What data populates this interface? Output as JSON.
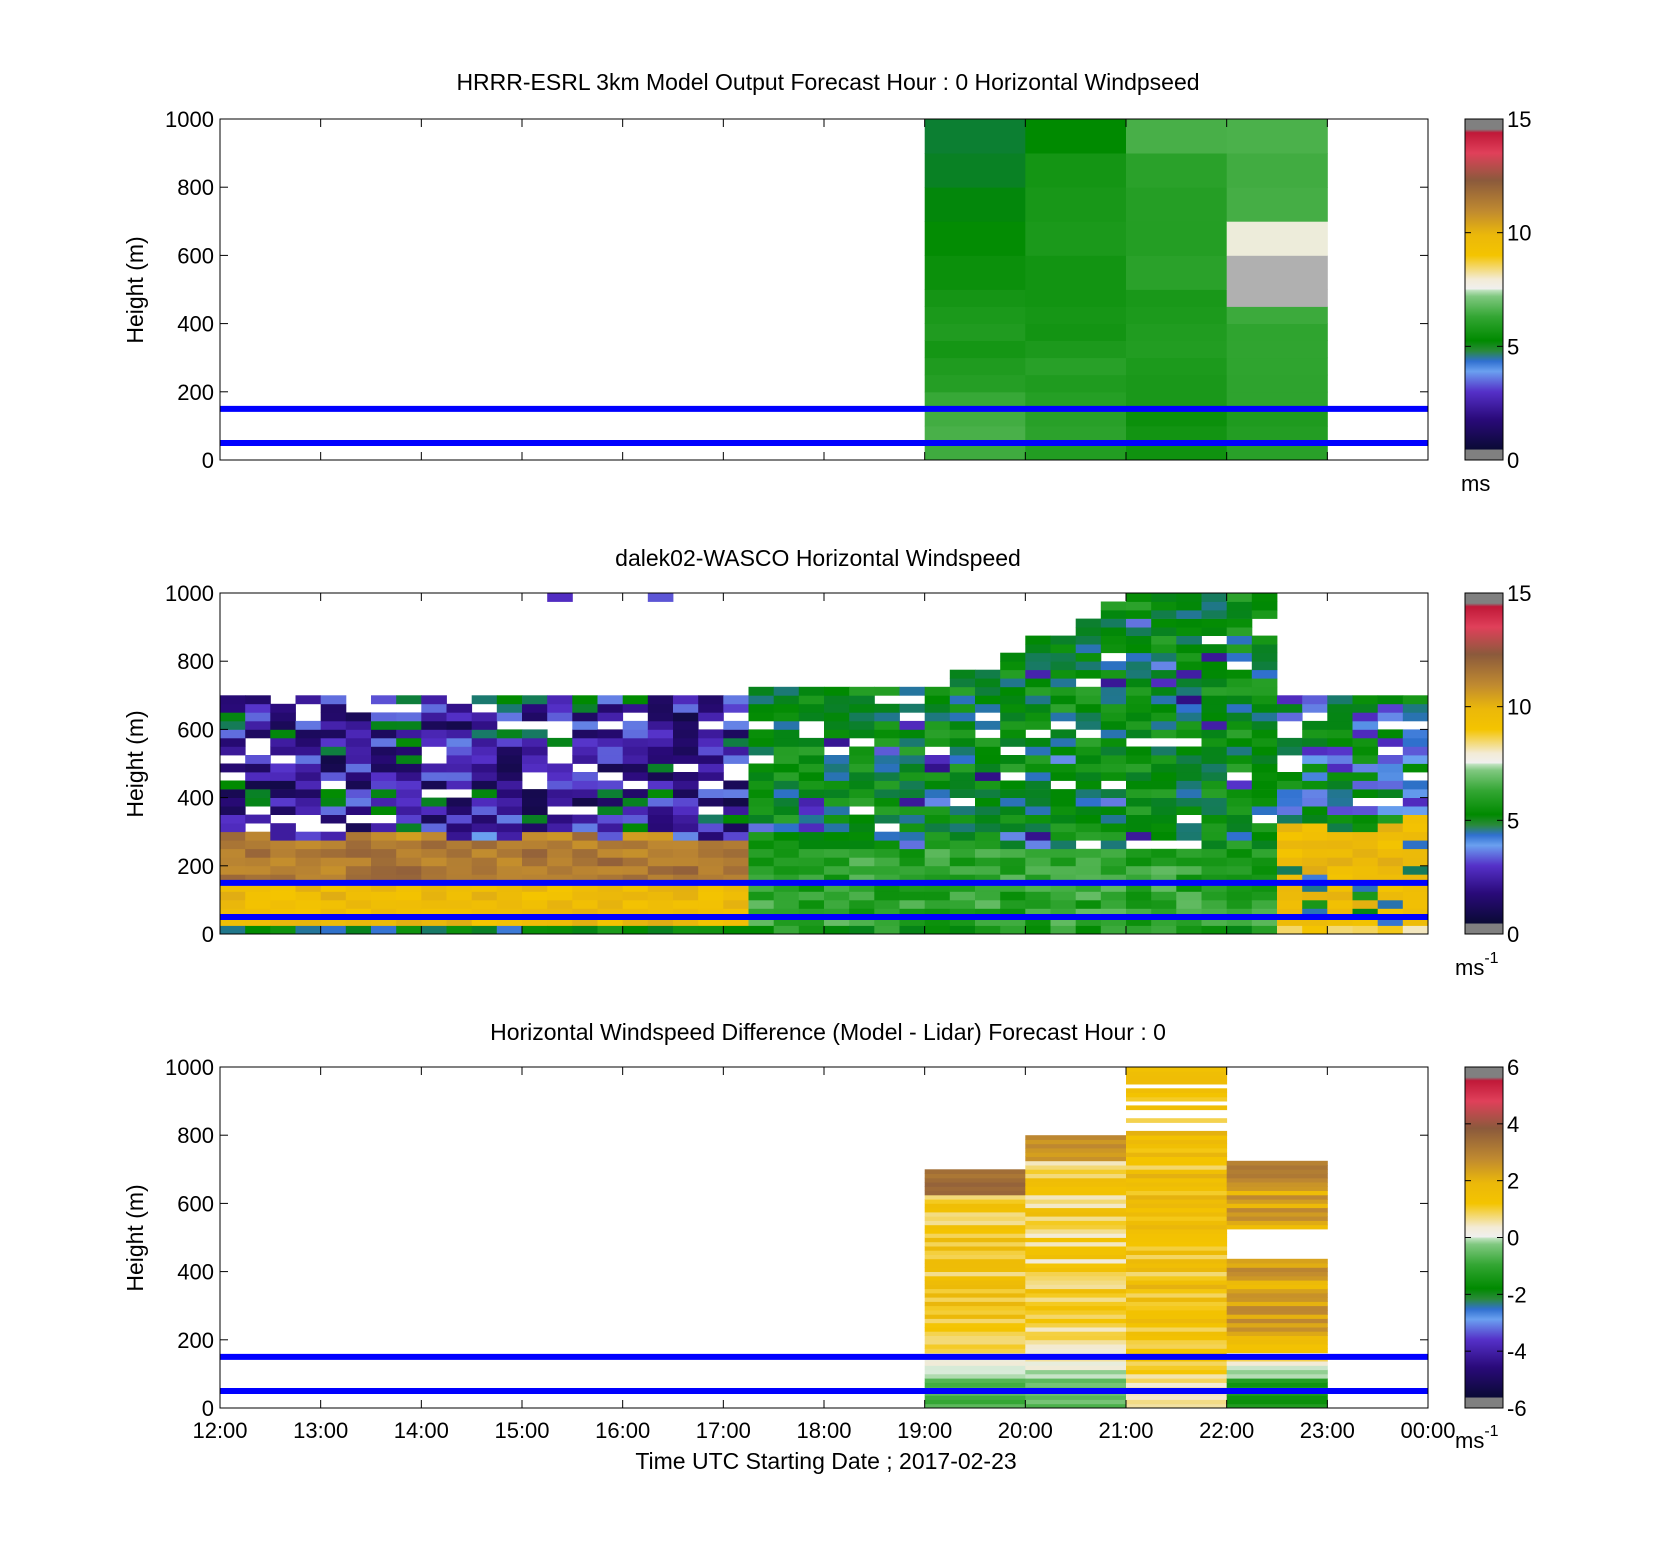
{
  "chart_data": [
    {
      "type": "heatmap",
      "title": "HRRR-ESRL 3km Model Output   Forecast Hour : 0 Horizontal Windpseed",
      "ylabel": "Height (m)",
      "ylim": [
        0,
        1000
      ],
      "yticks": [
        "0",
        "200",
        "400",
        "600",
        "800",
        "1000"
      ],
      "xlim": [
        12,
        24
      ],
      "xtick_labels_shown": false,
      "colorbar": {
        "min": 0,
        "max": 15,
        "ticks": [
          "0",
          "5",
          "10",
          "15"
        ],
        "unit": "ms",
        "unit_sup": ""
      },
      "reference_lines_m": [
        50,
        150
      ],
      "reference_line_color": "#0000ff",
      "columns": [
        {
          "start_hour": 19,
          "end_hour": 20,
          "base_speed": 6.6,
          "top_speed": 4.6
        },
        {
          "start_hour": 20,
          "end_hour": 21,
          "base_speed": 6.1,
          "top_speed": 5.5
        },
        {
          "start_hour": 21,
          "end_hour": 22,
          "base_speed": 5.6,
          "top_speed": 6.4
        },
        {
          "start_hour": 22,
          "end_hour": 23,
          "base_speed": 6.0,
          "top_speed": 6.5,
          "missing_band_m": [
            450,
            600
          ],
          "high_band_m": [
            600,
            700
          ],
          "high_band_speed": 7.8
        }
      ]
    },
    {
      "type": "heatmap",
      "title": "dalek02-WASCO  Horizontal Windspeed",
      "ylabel": "Height (m)",
      "ylim": [
        0,
        1000
      ],
      "yticks": [
        "0",
        "200",
        "400",
        "600",
        "800",
        "1000"
      ],
      "xlim": [
        12,
        24
      ],
      "xtick_labels_shown": false,
      "colorbar": {
        "min": 0,
        "max": 15,
        "ticks": [
          "0",
          "5",
          "10",
          "15"
        ],
        "unit": "ms",
        "unit_sup": "-1"
      },
      "reference_lines_m": [
        50,
        150
      ],
      "reference_line_color": "#0000ff",
      "data_range_hours": [
        12,
        23.8
      ],
      "regimes": [
        {
          "from_hour": 12,
          "to_hour": 17.3,
          "low_level": "9–12 m/s below ~300 m",
          "aloft": "0.5–3 m/s, 300–700 m"
        },
        {
          "from_hour": 17.3,
          "to_hour": 22.5,
          "low_level": "5–7 m/s",
          "aloft": "4–6 m/s up to ~1000 m"
        },
        {
          "from_hour": 22.5,
          "to_hour": 23.8,
          "low_level": "9–10 m/s below ~350 m",
          "aloft": "3–6 m/s, 350–700 m"
        }
      ]
    },
    {
      "type": "heatmap",
      "title": "Horizontal Windspeed Difference (Model - Lidar) Forecast Hour : 0",
      "ylabel": "Height (m)",
      "xlabel": "Time UTC  Starting Date ; 2017-02-23",
      "ylim": [
        0,
        1000
      ],
      "yticks": [
        "0",
        "200",
        "400",
        "600",
        "800",
        "1000"
      ],
      "xlim": [
        12,
        24
      ],
      "xticks": [
        "12:00",
        "13:00",
        "14:00",
        "15:00",
        "16:00",
        "17:00",
        "18:00",
        "19:00",
        "20:00",
        "21:00",
        "22:00",
        "23:00",
        "00:00"
      ],
      "colorbar": {
        "min": -6,
        "max": 6,
        "ticks": [
          "-6",
          "-4",
          "-2",
          "0",
          "2",
          "4",
          "6"
        ],
        "unit": "ms",
        "unit_sup": "-1"
      },
      "reference_lines_m": [
        50,
        150
      ],
      "reference_line_color": "#0000ff",
      "columns": [
        {
          "start_hour": 19,
          "end_hour": 20,
          "top_m": 690,
          "typical_diff": 1.3,
          "near_surface_diff": -0.8,
          "top_layer_diff": 3.4
        },
        {
          "start_hour": 20,
          "end_hour": 21,
          "top_m": 790,
          "typical_diff": 1.0,
          "near_surface_diff": -0.5,
          "top_layer_diff": 2.6
        },
        {
          "start_hour": 21,
          "end_hour": 22,
          "top_m": 1000,
          "typical_diff": 1.4,
          "near_surface_diff": 0.6,
          "top_layer_diff": 1.5
        },
        {
          "start_hour": 22,
          "end_hour": 23,
          "top_m": 720,
          "typical_diff": 2.2,
          "near_surface_diff": -1.3,
          "top_layer_diff": 3.0
        }
      ]
    }
  ]
}
